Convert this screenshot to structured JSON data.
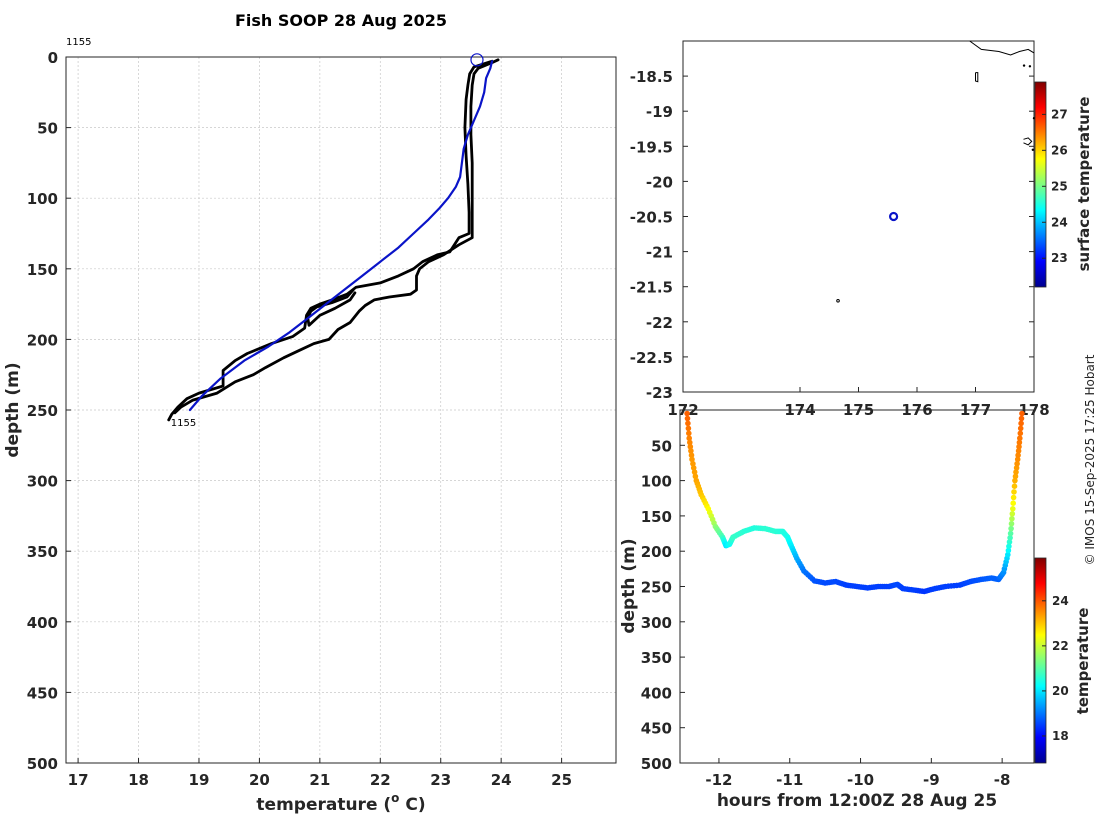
{
  "chart_data": [
    {
      "type": "line",
      "title": "Fish SOOP 28 Aug 2025",
      "xlabel": "temperature (° C)",
      "xlabel_main": "temperature (",
      "xlabel_sup": "o",
      "xlabel_end": " C)",
      "ylabel": "depth (m)",
      "xlim": [
        16.8,
        25.9
      ],
      "ylim": [
        500,
        0
      ],
      "xticks": [
        17,
        18,
        19,
        20,
        21,
        22,
        23,
        24,
        25
      ],
      "yticks": [
        0,
        50,
        100,
        150,
        200,
        250,
        300,
        350,
        400,
        450,
        500
      ],
      "top_label": "1155",
      "end_label": "1155",
      "surface_marker": {
        "temperature": 23.6,
        "depth": 2
      },
      "series": [
        {
          "name": "black-profile-a",
          "color": "#000000",
          "points": [
            [
              23.85,
              3
            ],
            [
              23.55,
              7
            ],
            [
              23.48,
              12
            ],
            [
              23.45,
              20
            ],
            [
              23.42,
              30
            ],
            [
              23.4,
              50
            ],
            [
              23.42,
              70
            ],
            [
              23.45,
              90
            ],
            [
              23.47,
              110
            ],
            [
              23.47,
              125
            ],
            [
              23.3,
              128
            ],
            [
              23.15,
              138
            ],
            [
              22.95,
              140
            ],
            [
              22.7,
              145
            ],
            [
              22.55,
              150
            ],
            [
              22.3,
              155
            ],
            [
              22.0,
              160
            ],
            [
              21.6,
              163
            ],
            [
              21.45,
              168
            ],
            [
              21.2,
              172
            ],
            [
              21.0,
              175
            ],
            [
              20.85,
              178
            ],
            [
              20.78,
              183
            ],
            [
              20.75,
              192
            ],
            [
              20.55,
              198
            ],
            [
              20.2,
              203
            ],
            [
              19.8,
              210
            ],
            [
              19.6,
              215
            ],
            [
              19.4,
              222
            ],
            [
              19.4,
              233
            ],
            [
              19.0,
              238
            ],
            [
              18.8,
              242
            ],
            [
              18.65,
              248
            ],
            [
              18.55,
              253
            ],
            [
              18.5,
              257
            ]
          ]
        },
        {
          "name": "black-profile-b",
          "color": "#000000",
          "points": [
            [
              23.95,
              2
            ],
            [
              23.85,
              4
            ],
            [
              23.62,
              8
            ],
            [
              23.55,
              12
            ],
            [
              23.52,
              20
            ],
            [
              23.5,
              35
            ],
            [
              23.5,
              55
            ],
            [
              23.52,
              75
            ],
            [
              23.52,
              95
            ],
            [
              23.52,
              115
            ],
            [
              23.52,
              128
            ],
            [
              23.3,
              133
            ],
            [
              23.05,
              140
            ],
            [
              22.8,
              145
            ],
            [
              22.65,
              150
            ],
            [
              22.6,
              155
            ],
            [
              22.6,
              165
            ],
            [
              22.5,
              168
            ],
            [
              22.15,
              170
            ],
            [
              21.9,
              172
            ],
            [
              21.75,
              176
            ],
            [
              21.65,
              180
            ],
            [
              21.5,
              188
            ],
            [
              21.3,
              193
            ],
            [
              21.15,
              200
            ],
            [
              20.9,
              203
            ],
            [
              20.65,
              208
            ],
            [
              20.4,
              213
            ],
            [
              20.1,
              220
            ],
            [
              19.9,
              225
            ],
            [
              19.6,
              230
            ],
            [
              19.3,
              238
            ],
            [
              18.9,
              243
            ],
            [
              18.7,
              248
            ],
            [
              18.6,
              252
            ]
          ]
        },
        {
          "name": "black-loop",
          "color": "#000000",
          "points": [
            [
              21.55,
              165
            ],
            [
              21.45,
              170
            ],
            [
              21.2,
              174
            ],
            [
              20.95,
              177
            ],
            [
              20.85,
              180
            ],
            [
              20.8,
              185
            ],
            [
              20.82,
              190
            ],
            [
              21.0,
              183
            ],
            [
              21.25,
              178
            ],
            [
              21.5,
              172
            ],
            [
              21.58,
              167
            ]
          ]
        },
        {
          "name": "blue-profile",
          "color": "#0a14c8",
          "points": [
            [
              23.85,
              3
            ],
            [
              23.82,
              8
            ],
            [
              23.75,
              15
            ],
            [
              23.72,
              25
            ],
            [
              23.65,
              35
            ],
            [
              23.55,
              45
            ],
            [
              23.45,
              55
            ],
            [
              23.38,
              65
            ],
            [
              23.35,
              75
            ],
            [
              23.32,
              85
            ],
            [
              23.25,
              92
            ],
            [
              23.12,
              100
            ],
            [
              22.98,
              107
            ],
            [
              22.8,
              115
            ],
            [
              22.55,
              125
            ],
            [
              22.3,
              135
            ],
            [
              22.0,
              145
            ],
            [
              21.7,
              155
            ],
            [
              21.4,
              165
            ],
            [
              21.1,
              175
            ],
            [
              20.8,
              185
            ],
            [
              20.5,
              195
            ],
            [
              20.15,
              205
            ],
            [
              19.75,
              215
            ],
            [
              19.35,
              228
            ],
            [
              19.05,
              240
            ],
            [
              18.85,
              250
            ]
          ]
        }
      ]
    },
    {
      "type": "scatter",
      "title": "",
      "xlim": [
        172.0,
        178.0
      ],
      "ylim": [
        -23.0,
        -18.0
      ],
      "xticks": [
        172,
        174,
        175,
        176,
        177,
        178
      ],
      "xtick_labels": [
        "172",
        "174",
        "175",
        "176",
        "177",
        "178"
      ],
      "yticks": [
        -18.5,
        -19,
        -19.5,
        -20,
        -20.5,
        -21,
        -21.5,
        -22,
        -22.5,
        -23
      ],
      "ytick_labels": [
        "-18.5",
        "-19",
        "-19.5",
        "-20",
        "-20.5",
        "-21",
        "-21.5",
        "-22",
        "-22.5",
        "-23"
      ],
      "station": {
        "lon": 175.6,
        "lat": -20.5,
        "color": "#0a14c8"
      },
      "islet": {
        "lon": 174.65,
        "lat": -21.7
      },
      "coast": [
        [
          [
            176.9,
            -18.0
          ],
          [
            177.1,
            -18.12
          ],
          [
            177.4,
            -18.15
          ],
          [
            177.6,
            -18.2
          ],
          [
            177.75,
            -18.15
          ],
          [
            177.9,
            -18.12
          ],
          [
            178.0,
            -18.17
          ]
        ],
        [
          [
            177.82,
            -19.4
          ],
          [
            177.9,
            -19.38
          ],
          [
            177.96,
            -19.43
          ],
          [
            177.9,
            -19.48
          ],
          [
            177.82,
            -19.45
          ]
        ],
        [
          [
            177.0,
            -18.45
          ],
          [
            177.04,
            -18.45
          ],
          [
            177.04,
            -18.58
          ],
          [
            177.0,
            -18.57
          ],
          [
            177.0,
            -18.45
          ]
        ]
      ],
      "coast_dots": [
        [
          177.83,
          -18.35
        ],
        [
          177.93,
          -18.36
        ],
        [
          177.98,
          -19.55
        ],
        [
          178.0,
          -19.1
        ]
      ],
      "colorbar": {
        "label": "surface temperature",
        "ticks": [
          23,
          24,
          25,
          26,
          27
        ],
        "min": 22.2,
        "max": 27.9
      }
    },
    {
      "type": "scatter",
      "xlabel": "hours from 12:00Z 28 Aug 25",
      "ylabel": "depth (m)",
      "xlim": [
        -12.55,
        -7.55
      ],
      "ylim": [
        500,
        0
      ],
      "xticks": [
        -12,
        -11,
        -10,
        -9,
        -8
      ],
      "yticks": [
        50,
        100,
        150,
        200,
        250,
        300,
        350,
        400,
        450,
        500
      ],
      "colorbar": {
        "label": "temperature",
        "ticks": [
          18,
          20,
          22,
          24
        ],
        "min": 16.8,
        "max": 25.9
      },
      "track": [
        [
          -12.45,
          5,
          23.9
        ],
        [
          -12.42,
          40,
          23.6
        ],
        [
          -12.38,
          70,
          23.4
        ],
        [
          -12.32,
          100,
          23.3
        ],
        [
          -12.25,
          120,
          23.0
        ],
        [
          -12.15,
          140,
          22.5
        ],
        [
          -12.05,
          165,
          21.5
        ],
        [
          -11.95,
          180,
          20.8
        ],
        [
          -11.9,
          192,
          20.0
        ],
        [
          -11.85,
          190,
          20.3
        ],
        [
          -11.8,
          180,
          20.7
        ],
        [
          -11.65,
          172,
          20.6
        ],
        [
          -11.5,
          167,
          20.5
        ],
        [
          -11.35,
          168,
          20.6
        ],
        [
          -11.2,
          172,
          20.6
        ],
        [
          -11.1,
          172,
          20.5
        ],
        [
          -11.03,
          180,
          20.4
        ],
        [
          -10.98,
          192,
          20.1
        ],
        [
          -10.9,
          210,
          19.5
        ],
        [
          -10.8,
          228,
          19.0
        ],
        [
          -10.65,
          242,
          18.7
        ],
        [
          -10.5,
          245,
          18.6
        ],
        [
          -10.35,
          243,
          18.6
        ],
        [
          -10.2,
          248,
          18.5
        ],
        [
          -10.05,
          250,
          18.5
        ],
        [
          -9.9,
          252,
          18.5
        ],
        [
          -9.75,
          250,
          18.5
        ],
        [
          -9.6,
          250,
          18.5
        ],
        [
          -9.48,
          247,
          18.6
        ],
        [
          -9.4,
          253,
          18.5
        ],
        [
          -9.25,
          255,
          18.5
        ],
        [
          -9.1,
          257,
          18.4
        ],
        [
          -8.95,
          253,
          18.5
        ],
        [
          -8.8,
          250,
          18.5
        ],
        [
          -8.6,
          248,
          18.5
        ],
        [
          -8.45,
          243,
          18.6
        ],
        [
          -8.3,
          240,
          18.7
        ],
        [
          -8.15,
          238,
          18.8
        ],
        [
          -8.05,
          240,
          18.8
        ],
        [
          -7.98,
          230,
          19.2
        ],
        [
          -7.92,
          205,
          20.0
        ],
        [
          -7.88,
          175,
          21.0
        ],
        [
          -7.85,
          140,
          22.3
        ],
        [
          -7.82,
          100,
          23.2
        ],
        [
          -7.78,
          70,
          23.5
        ],
        [
          -7.75,
          40,
          23.7
        ],
        [
          -7.72,
          5,
          23.9
        ]
      ]
    }
  ],
  "credit": "© IMOS 15-Sep-2025 17:25 Hobart"
}
